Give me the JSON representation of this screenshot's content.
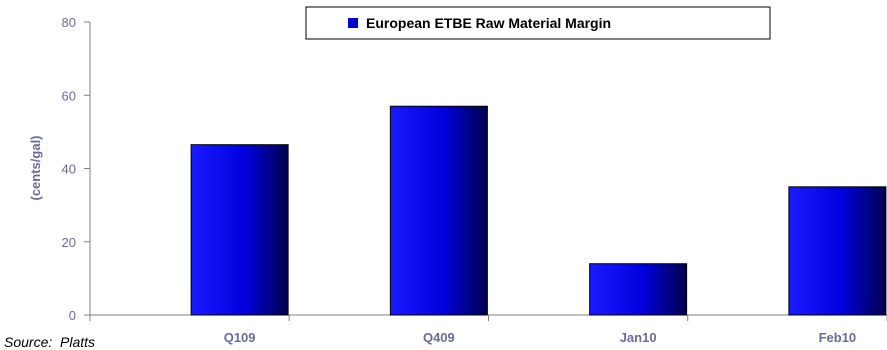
{
  "chart_data": {
    "type": "bar",
    "title": "",
    "xlabel": "",
    "ylabel": "(cents/gal)",
    "ylim": [
      0,
      80
    ],
    "yticks": [
      0,
      20,
      40,
      60,
      80
    ],
    "categories": [
      "Q109",
      "Q409",
      "Jan10",
      "Feb10"
    ],
    "series": [
      {
        "name": "European ETBE Raw Material Margin",
        "values": [
          46.5,
          57,
          14,
          35
        ],
        "color": "#0000cc"
      }
    ],
    "grid": false,
    "legend": "top-right"
  },
  "source": "Source:  Platts"
}
